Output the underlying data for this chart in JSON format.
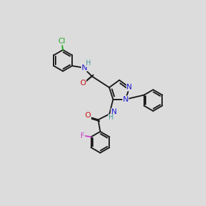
{
  "background_color": "#dcdcdc",
  "figsize": [
    3.0,
    3.0
  ],
  "dpi": 100,
  "bond_color": "#1a1a1a",
  "colors": {
    "N": "#1c1cd4",
    "O": "#cc1111",
    "Cl": "#22aa22",
    "F": "#cc44cc",
    "H_label": "#449999",
    "C": "#1a1a1a"
  },
  "lw": 1.4
}
